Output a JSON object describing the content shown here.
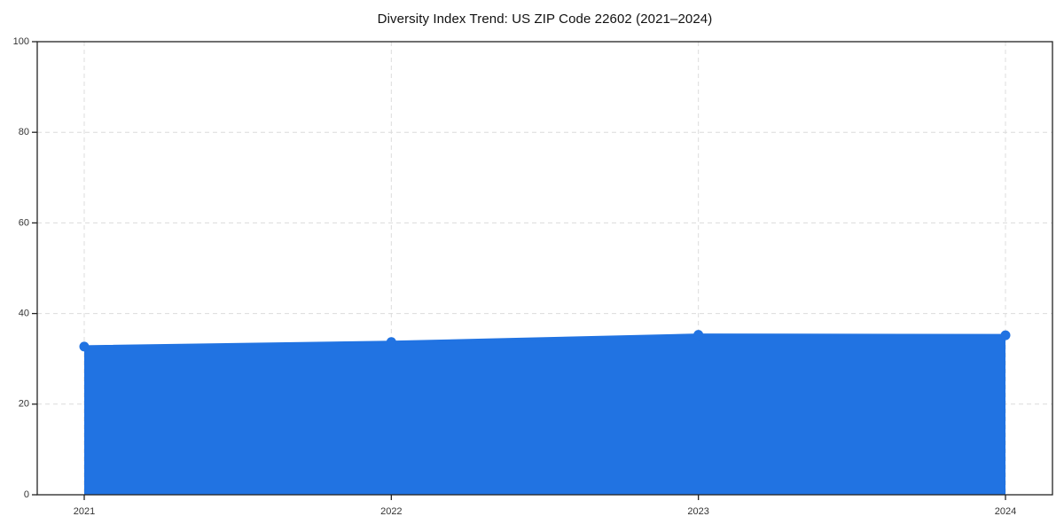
{
  "chart_data": {
    "type": "area",
    "title": "Diversity Index Trend: US ZIP Code 22602 (2021–2024)",
    "x": [
      2021,
      2022,
      2023,
      2024
    ],
    "xtick_labels": [
      "2021",
      "2022",
      "2023",
      "2024"
    ],
    "values": [
      32.7,
      33.7,
      35.3,
      35.2
    ],
    "xlabel": "",
    "ylabel": "",
    "ylim": [
      0,
      100
    ],
    "yticks": [
      0,
      20,
      40,
      60,
      80,
      100
    ],
    "grid": true,
    "grid_style": "dashed",
    "legend": "none",
    "colors": {
      "line": "#2173e2",
      "marker": "#2173e2",
      "fill": "#2173e2",
      "fill_opacity": 0.1,
      "grid": "#dcdcdc",
      "axis": "#222222",
      "tick_label": "#333333",
      "title": "#111111",
      "background": "#ffffff"
    }
  }
}
